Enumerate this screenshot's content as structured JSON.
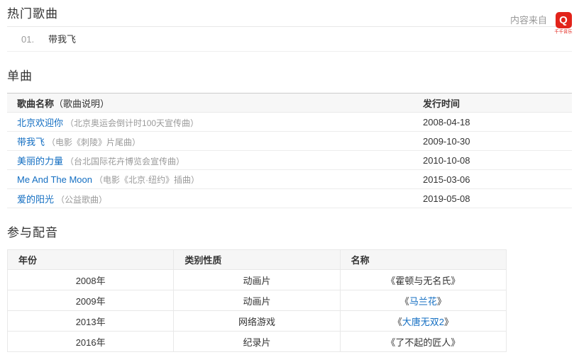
{
  "source": {
    "label": "内容来自",
    "logo_glyph": "Q",
    "logo_caption": "千千音乐"
  },
  "hot_songs": {
    "title": "热门歌曲",
    "items": [
      {
        "index": "01.",
        "name": "带我飞"
      }
    ]
  },
  "singles": {
    "title": "单曲",
    "header": {
      "name": "歌曲名称",
      "note": "（歌曲说明）",
      "date": "发行时间"
    },
    "rows": [
      {
        "name": "北京欢迎你",
        "note": "（北京奥运会倒计时100天宣传曲）",
        "date": "2008-04-18"
      },
      {
        "name": "带我飞",
        "note": "（电影《刺陵》片尾曲）",
        "date": "2009-10-30"
      },
      {
        "name": "美丽的力量",
        "note": "（台北国际花卉博览会宣传曲）",
        "date": "2010-10-08"
      },
      {
        "name": "Me And The Moon",
        "note": "（电影《北京·纽约》插曲）",
        "date": "2015-03-06"
      },
      {
        "name": "爱的阳光",
        "note": "（公益歌曲）",
        "date": "2019-05-08"
      }
    ]
  },
  "dubbing": {
    "title": "参与配音",
    "headers": [
      "年份",
      "类别性质",
      "名称"
    ],
    "rows": [
      {
        "year": "2008年",
        "category": "动画片",
        "open": "《",
        "name": "霍顿与无名氏",
        "close": "》",
        "linked": false
      },
      {
        "year": "2009年",
        "category": "动画片",
        "open": "《",
        "name": "马兰花",
        "close": "》",
        "linked": true
      },
      {
        "year": "2013年",
        "category": "网络游戏",
        "open": "《",
        "name": "大唐无双2",
        "close": "》",
        "linked": true
      },
      {
        "year": "2016年",
        "category": "纪录片",
        "open": "《",
        "name": "了不起的匠人",
        "close": "》",
        "linked": false
      }
    ]
  },
  "colors": {
    "link": "#136ec2",
    "logo_red": "#e2231a",
    "header_bg": "#f7f7f7"
  }
}
